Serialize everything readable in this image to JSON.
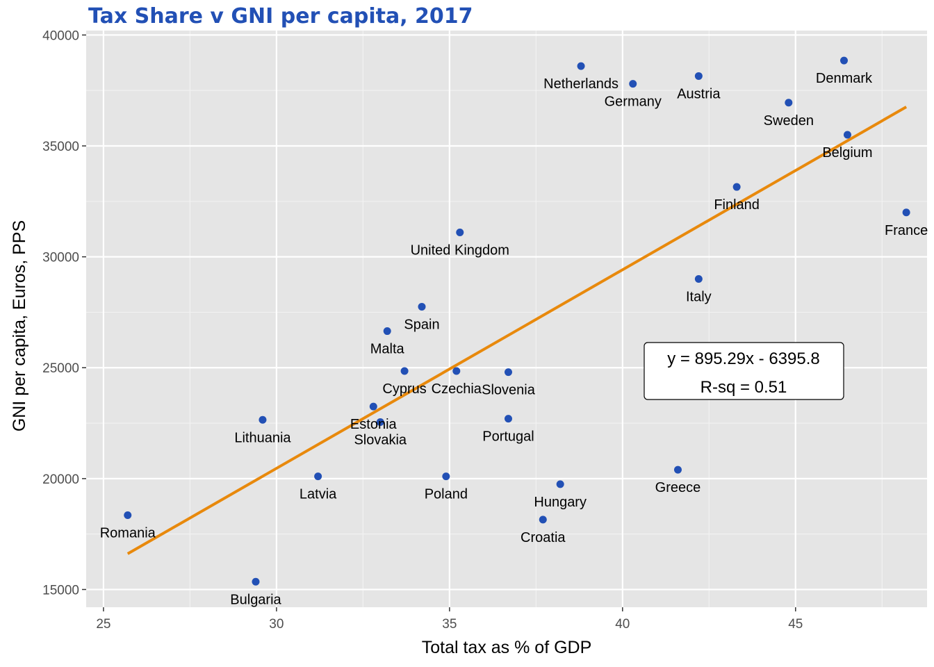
{
  "chart_data": {
    "type": "scatter",
    "title": "Tax Share v GNI per capita, 2017",
    "xlabel": "Total tax as % of GDP",
    "ylabel": "GNI per capita, Euros, PPS",
    "xlim": [
      24.5,
      48.8
    ],
    "ylim": [
      14200,
      40200
    ],
    "x_ticks": [
      25,
      30,
      35,
      40,
      45
    ],
    "y_ticks": [
      15000,
      20000,
      25000,
      30000,
      35000,
      40000
    ],
    "x_tick_labels": [
      "25",
      "30",
      "35",
      "40",
      "45"
    ],
    "y_tick_labels": [
      "15000",
      "20000",
      "25000",
      "30000",
      "35000",
      "40000"
    ],
    "grid": true,
    "legend": "none",
    "colors": {
      "title": "#2250B5",
      "points": "#2250B5",
      "trendline": "#E8890C",
      "panel": "#E5E5E5",
      "grid": "#FFFFFF"
    },
    "points": [
      {
        "label": "Netherlands",
        "x": 38.8,
        "y": 38600
      },
      {
        "label": "Germany",
        "x": 40.3,
        "y": 37800
      },
      {
        "label": "Austria",
        "x": 42.2,
        "y": 38150
      },
      {
        "label": "Denmark",
        "x": 46.4,
        "y": 38850
      },
      {
        "label": "Sweden",
        "x": 44.8,
        "y": 36950
      },
      {
        "label": "Belgium",
        "x": 46.5,
        "y": 35500
      },
      {
        "label": "Finland",
        "x": 43.3,
        "y": 33150
      },
      {
        "label": "France",
        "x": 48.2,
        "y": 32000
      },
      {
        "label": "United Kingdom",
        "x": 35.3,
        "y": 31100
      },
      {
        "label": "Italy",
        "x": 42.2,
        "y": 29000
      },
      {
        "label": "Spain",
        "x": 34.2,
        "y": 27750
      },
      {
        "label": "Malta",
        "x": 33.2,
        "y": 26650
      },
      {
        "label": "Cyprus",
        "x": 33.7,
        "y": 24850
      },
      {
        "label": "Czechia",
        "x": 35.2,
        "y": 24850
      },
      {
        "label": "Slovenia",
        "x": 36.7,
        "y": 24800
      },
      {
        "label": "Estonia",
        "x": 32.8,
        "y": 23250
      },
      {
        "label": "Slovakia",
        "x": 33.0,
        "y": 22550
      },
      {
        "label": "Portugal",
        "x": 36.7,
        "y": 22700
      },
      {
        "label": "Lithuania",
        "x": 29.6,
        "y": 22650
      },
      {
        "label": "Latvia",
        "x": 31.2,
        "y": 20100
      },
      {
        "label": "Poland",
        "x": 34.9,
        "y": 20100
      },
      {
        "label": "Greece",
        "x": 41.6,
        "y": 20400
      },
      {
        "label": "Hungary",
        "x": 38.2,
        "y": 19750
      },
      {
        "label": "Croatia",
        "x": 37.7,
        "y": 18150
      },
      {
        "label": "Romania",
        "x": 25.7,
        "y": 18350
      },
      {
        "label": "Bulgaria",
        "x": 29.4,
        "y": 15350
      }
    ],
    "trendline": {
      "slope": 895.29,
      "intercept": -6395.8,
      "x_range": [
        25.7,
        48.2
      ]
    },
    "annotation": {
      "line1": "y = 895.29x - 6395.8",
      "line2": "R-sq = 0.51"
    }
  }
}
